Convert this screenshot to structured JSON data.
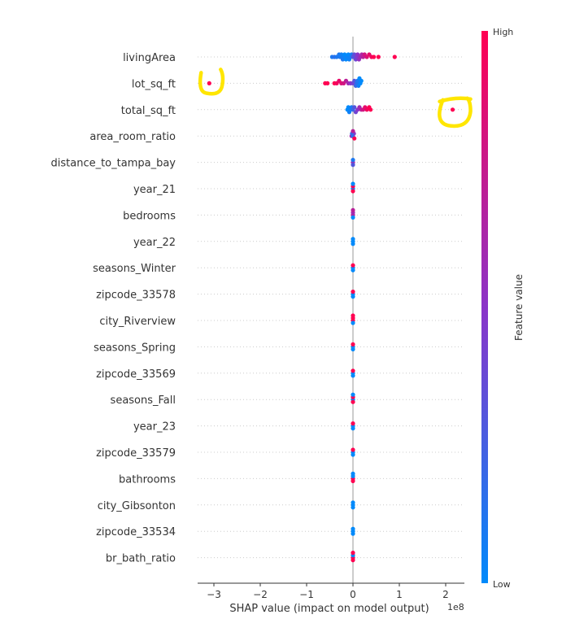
{
  "chart_data": {
    "type": "scatter",
    "subtype": "shap-beeswarm-summary",
    "title": "",
    "xlabel": "SHAP value (impact on model output)",
    "x_scale_label": "1e8",
    "xlim": [
      -3.4,
      2.4
    ],
    "x_ticks": [
      -3,
      -2,
      -1,
      0,
      1,
      2
    ],
    "x_tick_labels": [
      "−3",
      "−2",
      "−1",
      "0",
      "1",
      "2"
    ],
    "grid": "dotted horizontal per feature",
    "colorbar": {
      "title": "Feature value",
      "high_label": "High",
      "low_label": "Low",
      "high_color": "#ff0052",
      "mid_color": "#8b34c8",
      "low_color": "#008afb",
      "placement": "right"
    },
    "features": [
      {
        "name": "livingArea",
        "points": [
          [
            -0.45,
            0.1
          ],
          [
            -0.4,
            0.15
          ],
          [
            -0.35,
            0.1
          ],
          [
            -0.3,
            0.1
          ],
          [
            -0.28,
            0.1
          ],
          [
            -0.25,
            0.05
          ],
          [
            -0.22,
            0.1
          ],
          [
            -0.2,
            0.05
          ],
          [
            -0.18,
            0.0
          ],
          [
            -0.15,
            0.0
          ],
          [
            -0.12,
            0.05
          ],
          [
            -0.1,
            0.0
          ],
          [
            -0.08,
            0.05
          ],
          [
            -0.05,
            0.05
          ],
          [
            -0.03,
            0.1
          ],
          [
            0.0,
            0.3
          ],
          [
            0.03,
            0.35
          ],
          [
            0.06,
            0.4
          ],
          [
            0.08,
            0.45
          ],
          [
            0.1,
            0.5
          ],
          [
            0.13,
            0.55
          ],
          [
            0.16,
            0.6
          ],
          [
            0.19,
            0.65
          ],
          [
            0.22,
            0.7
          ],
          [
            0.25,
            0.8
          ],
          [
            0.3,
            0.85
          ],
          [
            0.35,
            0.9
          ],
          [
            0.4,
            0.95
          ],
          [
            0.45,
            1.0
          ],
          [
            0.55,
            1.0
          ],
          [
            0.9,
            1.0
          ]
        ]
      },
      {
        "name": "lot_sq_ft",
        "points": [
          [
            -3.1,
            1.0
          ],
          [
            -0.6,
            1.0
          ],
          [
            -0.55,
            1.0
          ],
          [
            -0.4,
            1.0
          ],
          [
            -0.35,
            0.95
          ],
          [
            -0.3,
            0.9
          ],
          [
            -0.25,
            0.85
          ],
          [
            -0.2,
            0.8
          ],
          [
            -0.15,
            0.7
          ],
          [
            -0.1,
            0.6
          ],
          [
            -0.05,
            0.5
          ],
          [
            0.0,
            0.4
          ],
          [
            0.03,
            0.3
          ],
          [
            0.06,
            0.2
          ],
          [
            0.08,
            0.15
          ],
          [
            0.1,
            0.1
          ],
          [
            0.12,
            0.05
          ],
          [
            0.14,
            0.0
          ],
          [
            0.16,
            0.0
          ],
          [
            0.18,
            0.0
          ]
        ]
      },
      {
        "name": "total_sq_ft",
        "points": [
          [
            -0.12,
            0.0
          ],
          [
            -0.1,
            0.0
          ],
          [
            -0.08,
            0.05
          ],
          [
            -0.05,
            0.05
          ],
          [
            -0.03,
            0.1
          ],
          [
            0.0,
            0.2
          ],
          [
            0.03,
            0.3
          ],
          [
            0.06,
            0.4
          ],
          [
            0.1,
            0.5
          ],
          [
            0.14,
            0.6
          ],
          [
            0.18,
            0.7
          ],
          [
            0.22,
            0.8
          ],
          [
            0.26,
            0.9
          ],
          [
            0.3,
            0.95
          ],
          [
            0.35,
            1.0
          ],
          [
            0.38,
            1.0
          ],
          [
            2.15,
            1.0
          ]
        ]
      },
      {
        "name": "area_room_ratio",
        "points": [
          [
            -0.03,
            0.6
          ],
          [
            0.0,
            0.1
          ],
          [
            0.02,
            0.5
          ],
          [
            0.03,
            1.0
          ],
          [
            -0.02,
            0.2
          ],
          [
            0.0,
            0.7
          ]
        ]
      },
      {
        "name": "distance_to_tampa_bay",
        "points": [
          [
            0.0,
            0.6
          ],
          [
            0.0,
            0.1
          ],
          [
            0.0,
            0.3
          ]
        ]
      },
      {
        "name": "year_21",
        "points": [
          [
            0.0,
            0.0
          ],
          [
            0.0,
            1.0
          ],
          [
            0.0,
            1.0
          ],
          [
            0.0,
            0.0
          ]
        ]
      },
      {
        "name": "bedrooms",
        "points": [
          [
            0.0,
            0.7
          ],
          [
            0.0,
            0.6
          ],
          [
            0.0,
            0.0
          ],
          [
            0.0,
            0.7
          ]
        ]
      },
      {
        "name": "year_22",
        "points": [
          [
            0.0,
            0.0
          ],
          [
            0.0,
            0.0
          ],
          [
            0.0,
            0.0
          ]
        ]
      },
      {
        "name": "seasons_Winter",
        "points": [
          [
            0.0,
            0.0
          ],
          [
            0.0,
            1.0
          ],
          [
            0.0,
            0.0
          ]
        ]
      },
      {
        "name": "zipcode_33578",
        "points": [
          [
            0.0,
            0.0
          ],
          [
            0.0,
            1.0
          ],
          [
            0.0,
            0.0
          ]
        ]
      },
      {
        "name": "city_Riverview",
        "points": [
          [
            0.0,
            1.0
          ],
          [
            0.0,
            1.0
          ],
          [
            0.0,
            0.0
          ],
          [
            0.0,
            1.0
          ]
        ]
      },
      {
        "name": "seasons_Spring",
        "points": [
          [
            0.0,
            0.0
          ],
          [
            0.0,
            1.0
          ],
          [
            0.0,
            0.0
          ]
        ]
      },
      {
        "name": "zipcode_33569",
        "points": [
          [
            0.0,
            0.0
          ],
          [
            0.0,
            1.0
          ],
          [
            0.0,
            0.0
          ]
        ]
      },
      {
        "name": "seasons_Fall",
        "points": [
          [
            0.0,
            0.0
          ],
          [
            0.0,
            1.0
          ],
          [
            0.0,
            1.0
          ],
          [
            0.0,
            0.0
          ]
        ]
      },
      {
        "name": "year_23",
        "points": [
          [
            0.0,
            0.0
          ],
          [
            0.0,
            1.0
          ],
          [
            0.0,
            0.0
          ]
        ]
      },
      {
        "name": "zipcode_33579",
        "points": [
          [
            0.0,
            0.0
          ],
          [
            0.0,
            1.0
          ],
          [
            0.0,
            0.0
          ]
        ]
      },
      {
        "name": "bathrooms",
        "points": [
          [
            0.0,
            1.0
          ],
          [
            0.0,
            0.0
          ],
          [
            0.0,
            1.0
          ],
          [
            0.0,
            0.0
          ]
        ]
      },
      {
        "name": "city_Gibsonton",
        "points": [
          [
            0.0,
            0.0
          ],
          [
            0.0,
            0.0
          ],
          [
            0.0,
            0.0
          ]
        ]
      },
      {
        "name": "zipcode_33534",
        "points": [
          [
            0.0,
            0.0
          ],
          [
            0.0,
            0.0
          ],
          [
            0.0,
            0.0
          ]
        ]
      },
      {
        "name": "br_bath_ratio",
        "points": [
          [
            0.0,
            1.0
          ],
          [
            0.0,
            0.0
          ],
          [
            0.0,
            1.0
          ],
          [
            0.0,
            1.0
          ]
        ]
      }
    ],
    "annotations": [
      {
        "type": "hand-drawn-circle",
        "color": "#ffe600",
        "target_feature": "lot_sq_ft",
        "target_x": -3.1
      },
      {
        "type": "hand-drawn-circle",
        "color": "#ffe600",
        "target_feature": "total_sq_ft",
        "target_x": 2.15
      }
    ]
  }
}
